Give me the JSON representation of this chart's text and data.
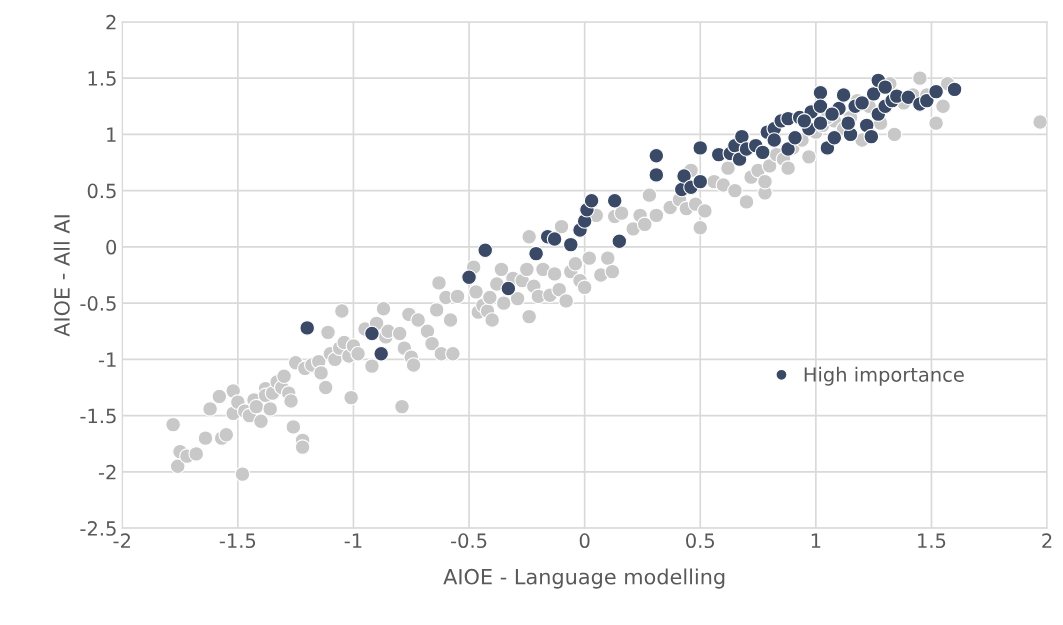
{
  "chart_data": {
    "type": "scatter",
    "xlabel": "AIOE - Language modelling",
    "ylabel": "AIOE - All AI",
    "xlim": [
      -2,
      2
    ],
    "ylim": [
      -2.5,
      2
    ],
    "xticks": [
      -2,
      -1.5,
      -1,
      -0.5,
      0,
      0.5,
      1,
      1.5,
      2
    ],
    "yticks": [
      -2.5,
      -2,
      -1.5,
      -1,
      -0.5,
      0,
      0.5,
      1,
      1.5,
      2
    ],
    "grid": true,
    "legend": "right",
    "marker": "circle",
    "series": [
      {
        "color": "#c8c8c8",
        "x": [
          -1.78,
          -1.75,
          -1.76,
          -1.72,
          -1.68,
          -1.64,
          -1.62,
          -1.58,
          -1.57,
          -1.55,
          -1.52,
          -1.52,
          -1.5,
          -1.48,
          -1.47,
          -1.45,
          -1.43,
          -1.42,
          -1.4,
          -1.38,
          -1.38,
          -1.36,
          -1.35,
          -1.33,
          -1.31,
          -1.3,
          -1.28,
          -1.27,
          -1.26,
          -1.25,
          -1.22,
          -1.22,
          -1.21,
          -1.18,
          -1.15,
          -1.14,
          -1.12,
          -1.11,
          -1.1,
          -1.08,
          -1.06,
          -1.05,
          -1.04,
          -1.02,
          -1.01,
          -1.0,
          -0.98,
          -0.95,
          -0.92,
          -0.9,
          -0.87,
          -0.86,
          -0.85,
          -0.8,
          -0.79,
          -0.78,
          -0.76,
          -0.75,
          -0.74,
          -0.72,
          -0.68,
          -0.66,
          -0.64,
          -0.63,
          -0.62,
          -0.6,
          -0.58,
          -0.57,
          -0.55,
          -0.48,
          -0.47,
          -0.46,
          -0.44,
          -0.42,
          -0.41,
          -0.4,
          -0.38,
          -0.36,
          -0.35,
          -0.31,
          -0.29,
          -0.27,
          -0.25,
          -0.24,
          -0.24,
          -0.22,
          -0.2,
          -0.18,
          -0.15,
          -0.13,
          -0.11,
          -0.1,
          -0.08,
          -0.06,
          -0.04,
          -0.02,
          0.0,
          0.02,
          0.05,
          0.07,
          0.1,
          0.12,
          0.13,
          0.16,
          0.21,
          0.24,
          0.26,
          0.28,
          0.31,
          0.37,
          0.41,
          0.44,
          0.46,
          0.48,
          0.5,
          0.52,
          0.56,
          0.6,
          0.62,
          0.65,
          0.7,
          0.72,
          0.75,
          0.78,
          0.8,
          0.83,
          0.86,
          0.9,
          0.94,
          0.97,
          1.0,
          1.03,
          1.08,
          1.12,
          1.15,
          1.2,
          1.23,
          1.28,
          1.32,
          1.34,
          1.38,
          1.42,
          1.45,
          1.48,
          1.52,
          1.55,
          1.57,
          1.97,
          0.78,
          0.88,
          1.05,
          1.18
        ],
        "values": [
          -1.58,
          -1.82,
          -1.95,
          -1.86,
          -1.84,
          -1.7,
          -1.44,
          -1.33,
          -1.7,
          -1.67,
          -1.28,
          -1.48,
          -1.38,
          -2.02,
          -1.46,
          -1.5,
          -1.36,
          -1.42,
          -1.55,
          -1.26,
          -1.32,
          -1.44,
          -1.3,
          -1.2,
          -1.25,
          -1.15,
          -1.3,
          -1.37,
          -1.6,
          -1.03,
          -1.72,
          -1.78,
          -1.08,
          -1.05,
          -1.02,
          -1.12,
          -1.25,
          -0.76,
          -0.95,
          -1.0,
          -0.9,
          -0.57,
          -0.85,
          -0.97,
          -1.34,
          -0.88,
          -0.95,
          -0.73,
          -1.06,
          -0.68,
          -0.55,
          -0.8,
          -0.75,
          -0.77,
          -1.42,
          -0.9,
          -0.6,
          -0.98,
          -1.05,
          -0.65,
          -0.75,
          -0.86,
          -0.56,
          -0.32,
          -0.95,
          -0.45,
          -0.65,
          -0.95,
          -0.44,
          -0.18,
          -0.4,
          -0.58,
          -0.52,
          -0.57,
          -0.45,
          -0.65,
          -0.33,
          -0.2,
          -0.5,
          -0.28,
          -0.46,
          -0.3,
          -0.2,
          -0.62,
          0.09,
          -0.35,
          -0.44,
          -0.2,
          -0.43,
          -0.24,
          -0.38,
          0.18,
          -0.48,
          -0.22,
          -0.15,
          -0.3,
          -0.36,
          -0.1,
          0.28,
          -0.25,
          -0.1,
          -0.22,
          0.27,
          0.3,
          0.16,
          0.28,
          0.2,
          0.46,
          0.28,
          0.35,
          0.42,
          0.34,
          0.68,
          0.38,
          0.17,
          0.32,
          0.58,
          0.55,
          0.7,
          0.5,
          0.4,
          0.62,
          0.68,
          0.48,
          0.72,
          0.82,
          0.78,
          0.88,
          0.95,
          0.8,
          1.02,
          1.08,
          1.12,
          1.05,
          1.15,
          0.95,
          1.25,
          1.1,
          1.45,
          1.0,
          1.28,
          1.35,
          1.5,
          1.35,
          1.1,
          1.25,
          1.45,
          1.11,
          0.58,
          0.7,
          1.15,
          1.3
        ]
      },
      {
        "name": "High importance",
        "color": "#3a4a66",
        "x": [
          -1.2,
          -0.92,
          -0.88,
          -0.5,
          -0.43,
          -0.33,
          -0.21,
          -0.16,
          -0.13,
          -0.06,
          -0.02,
          0.0,
          0.01,
          0.03,
          0.13,
          0.15,
          0.31,
          0.31,
          0.42,
          0.43,
          0.46,
          0.5,
          0.5,
          0.58,
          0.63,
          0.65,
          0.67,
          0.68,
          0.7,
          0.74,
          0.77,
          0.79,
          0.82,
          0.85,
          0.88,
          0.82,
          0.88,
          0.91,
          0.93,
          0.97,
          0.98,
          1.02,
          1.02,
          1.02,
          1.05,
          1.08,
          1.1,
          1.12,
          1.15,
          1.17,
          1.2,
          1.22,
          1.25,
          1.24,
          1.27,
          1.27,
          1.3,
          1.3,
          1.33,
          1.35,
          1.4,
          1.45,
          1.48,
          1.52,
          1.6,
          1.07,
          1.14,
          0.95
        ],
        "values": [
          -0.72,
          -0.77,
          -0.95,
          -0.27,
          -0.03,
          -0.37,
          -0.06,
          0.09,
          0.07,
          0.02,
          0.15,
          0.23,
          0.33,
          0.41,
          0.41,
          0.05,
          0.81,
          0.64,
          0.51,
          0.63,
          0.53,
          0.58,
          0.88,
          0.82,
          0.83,
          0.9,
          0.78,
          0.98,
          0.87,
          0.9,
          0.84,
          1.02,
          1.05,
          1.12,
          1.14,
          0.95,
          0.87,
          0.97,
          1.15,
          1.05,
          1.2,
          1.37,
          1.25,
          1.1,
          0.88,
          0.97,
          1.23,
          1.35,
          1.0,
          1.25,
          1.28,
          1.08,
          1.36,
          0.98,
          1.48,
          1.18,
          1.42,
          1.25,
          1.3,
          1.34,
          1.33,
          1.27,
          1.3,
          1.38,
          1.4,
          1.18,
          1.1,
          1.12
        ]
      }
    ]
  }
}
